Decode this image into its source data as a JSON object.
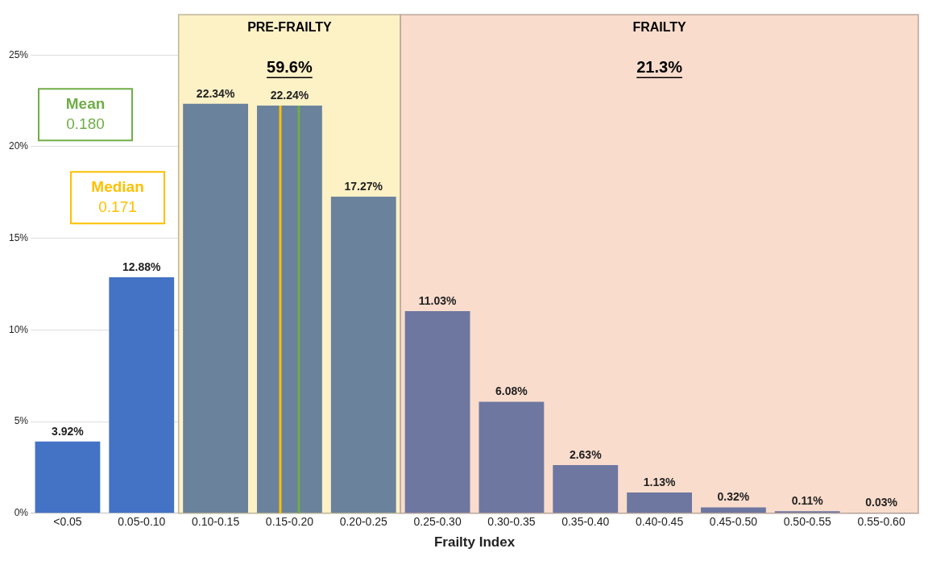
{
  "chart_data": {
    "type": "bar",
    "xlabel": "Frailty Index",
    "categories": [
      "<0.05",
      "0.05-0.10",
      "0.10-0.15",
      "0.15-0.20",
      "0.20-0.25",
      "0.25-0.30",
      "0.30-0.35",
      "0.35-0.40",
      "0.40-0.45",
      "0.45-0.50",
      "0.50-0.55",
      "0.55-0.60"
    ],
    "values": [
      3.92,
      12.88,
      22.34,
      22.24,
      17.27,
      11.03,
      6.08,
      2.63,
      1.13,
      0.32,
      0.11,
      0.03
    ],
    "value_labels": [
      "3.92%",
      "12.88%",
      "22.34%",
      "22.24%",
      "17.27%",
      "11.03%",
      "6.08%",
      "2.63%",
      "1.13%",
      "0.32%",
      "0.11%",
      "0.03%"
    ],
    "colors": [
      "#4472c4",
      "#4472c4",
      "#6a829b",
      "#6a829b",
      "#6a829b",
      "#6e77a0",
      "#6e77a0",
      "#6e77a0",
      "#6e77a0",
      "#6e77a0",
      "#6e77a0",
      "#6e77a0"
    ],
    "ylim": [
      0,
      27.2
    ],
    "yticks": [
      {
        "value": 0,
        "label": "0%"
      },
      {
        "value": 5,
        "label": "5%"
      },
      {
        "value": 10,
        "label": "10%"
      },
      {
        "value": 15,
        "label": "15%"
      },
      {
        "value": 20,
        "label": "20%"
      },
      {
        "value": 25,
        "label": "25%"
      }
    ],
    "grid": "y",
    "legend": false,
    "bands": [
      {
        "axis": "x",
        "from": "0.10-0.15",
        "to": "0.20-0.25",
        "label": "PRE-FRAILTY",
        "color": "#fdf1c6"
      },
      {
        "axis": "x",
        "from": "0.25-0.30",
        "to": "0.55-0.60",
        "label": "FRAILTY",
        "color": "#f9dccc"
      }
    ],
    "annotations": [
      "59.6%",
      "21.3%"
    ],
    "ref_lines": [
      {
        "axis": "x",
        "value": "0.15-0.20",
        "label": "Median 0.171",
        "color": "#ffc000"
      },
      {
        "axis": "x",
        "value": "0.15-0.20",
        "label": "Mean 0.180",
        "color": "#70ad47"
      }
    ]
  }
}
